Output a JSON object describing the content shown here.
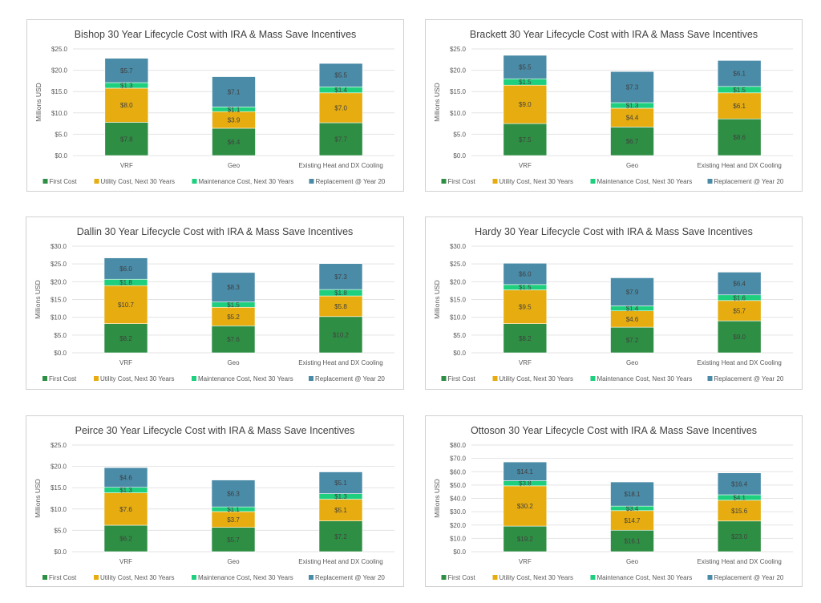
{
  "colors": {
    "first_cost": "#2e8f44",
    "utility": "#e6ac10",
    "maintenance": "#1ecf7e",
    "replacement": "#4a8ba8"
  },
  "chart_data": [
    {
      "type": "bar",
      "stacked": true,
      "title": "Bishop 30 Year Lifecycle Cost with IRA & Mass Save Incentives",
      "xlabel": "",
      "ylabel": "Millions USD",
      "ylim": [
        0,
        25
      ],
      "yticks": [
        "$0.0",
        "$5.0",
        "$10.0",
        "$15.0",
        "$20.0",
        "$25.0"
      ],
      "grid": true,
      "legend": "bottom",
      "categories": [
        "VRF",
        "Geo",
        "Existing Heat and DX Cooling"
      ],
      "series": [
        {
          "name": "First Cost",
          "key": "first_cost",
          "values": [
            7.8,
            6.4,
            7.7
          ],
          "labels": [
            "$7.8",
            "$6.4",
            "$7.7"
          ]
        },
        {
          "name": "Utility Cost, Next 30 Years",
          "key": "utility",
          "values": [
            8.0,
            3.9,
            7.0
          ],
          "labels": [
            "$8.0",
            "$3.9",
            "$7.0"
          ]
        },
        {
          "name": "Maintenance Cost, Next 30 Years",
          "key": "maintenance",
          "values": [
            1.3,
            1.1,
            1.4
          ],
          "labels": [
            "$1.3",
            "$1.1",
            "$1.4"
          ]
        },
        {
          "name": "Replacement @ Year 20",
          "key": "replacement",
          "values": [
            5.7,
            7.1,
            5.5
          ],
          "labels": [
            "$5.7",
            "$7.1",
            "$5.5"
          ]
        }
      ]
    },
    {
      "type": "bar",
      "stacked": true,
      "title": "Brackett 30 Year Lifecycle Cost with IRA & Mass Save Incentives",
      "xlabel": "",
      "ylabel": "Millions USD",
      "ylim": [
        0,
        25
      ],
      "yticks": [
        "$0.0",
        "$5.0",
        "$10.0",
        "$15.0",
        "$20.0",
        "$25.0"
      ],
      "grid": true,
      "legend": "bottom",
      "categories": [
        "VRF",
        "Geo",
        "Existing Heat and DX Cooling"
      ],
      "series": [
        {
          "name": "First Cost",
          "key": "first_cost",
          "values": [
            7.5,
            6.7,
            8.6
          ],
          "labels": [
            "$7.5",
            "$6.7",
            "$8.6"
          ]
        },
        {
          "name": "Utility Cost, Next 30 Years",
          "key": "utility",
          "values": [
            9.0,
            4.4,
            6.1
          ],
          "labels": [
            "$9.0",
            "$4.4",
            "$6.1"
          ]
        },
        {
          "name": "Maintenance Cost, Next 30 Years",
          "key": "maintenance",
          "values": [
            1.5,
            1.3,
            1.5
          ],
          "labels": [
            "$1.5",
            "$1.3",
            "$1.5"
          ]
        },
        {
          "name": "Replacement @ Year 20",
          "key": "replacement",
          "values": [
            5.5,
            7.3,
            6.1
          ],
          "labels": [
            "$5.5",
            "$7.3",
            "$6.1"
          ]
        }
      ]
    },
    {
      "type": "bar",
      "stacked": true,
      "title": "Dallin 30 Year Lifecycle Cost with IRA & Mass Save Incentives",
      "xlabel": "",
      "ylabel": "Millions USD",
      "ylim": [
        0,
        30
      ],
      "yticks": [
        "$0.0",
        "$5.0",
        "$10.0",
        "$15.0",
        "$20.0",
        "$25.0",
        "$30.0"
      ],
      "grid": true,
      "legend": "bottom",
      "categories": [
        "VRF",
        "Geo",
        "Existing Heat and DX Cooling"
      ],
      "series": [
        {
          "name": "First Cost",
          "key": "first_cost",
          "values": [
            8.2,
            7.6,
            10.2
          ],
          "labels": [
            "$8.2",
            "$7.6",
            "$10.2"
          ]
        },
        {
          "name": "Utility Cost, Next 30 Years",
          "key": "utility",
          "values": [
            10.7,
            5.2,
            5.8
          ],
          "labels": [
            "$10.7",
            "$5.2",
            "$5.8"
          ]
        },
        {
          "name": "Maintenance Cost, Next 30 Years",
          "key": "maintenance",
          "values": [
            1.8,
            1.5,
            1.8
          ],
          "labels": [
            "$1.8",
            "$1.5",
            "$1.8"
          ]
        },
        {
          "name": "Replacement @ Year 20",
          "key": "replacement",
          "values": [
            6.0,
            8.3,
            7.3
          ],
          "labels": [
            "$6.0",
            "$8.3",
            "$7.3"
          ]
        }
      ]
    },
    {
      "type": "bar",
      "stacked": true,
      "title": "Hardy 30 Year Lifecycle Cost with IRA & Mass Save Incentives",
      "xlabel": "",
      "ylabel": "Millions USD",
      "ylim": [
        0,
        30
      ],
      "yticks": [
        "$0.0",
        "$5.0",
        "$10.0",
        "$15.0",
        "$20.0",
        "$25.0",
        "$30.0"
      ],
      "grid": true,
      "legend": "bottom",
      "categories": [
        "VRF",
        "Geo",
        "Existing Heat and DX Cooling"
      ],
      "series": [
        {
          "name": "First Cost",
          "key": "first_cost",
          "values": [
            8.2,
            7.2,
            9.0
          ],
          "labels": [
            "$8.2",
            "$7.2",
            "$9.0"
          ]
        },
        {
          "name": "Utility Cost, Next 30 Years",
          "key": "utility",
          "values": [
            9.5,
            4.6,
            5.7
          ],
          "labels": [
            "$9.5",
            "$4.6",
            "$5.7"
          ]
        },
        {
          "name": "Maintenance Cost, Next 30 Years",
          "key": "maintenance",
          "values": [
            1.5,
            1.4,
            1.6
          ],
          "labels": [
            "$1.5",
            "$1.4",
            "$1.6"
          ]
        },
        {
          "name": "Replacement @ Year 20",
          "key": "replacement",
          "values": [
            6.0,
            7.9,
            6.4
          ],
          "labels": [
            "$6.0",
            "$7.9",
            "$6.4"
          ]
        }
      ]
    },
    {
      "type": "bar",
      "stacked": true,
      "title": "Peirce 30 Year Lifecycle Cost with IRA & Mass Save Incentives",
      "xlabel": "",
      "ylabel": "Millions USD",
      "ylim": [
        0,
        25
      ],
      "yticks": [
        "$0.0",
        "$5.0",
        "$10.0",
        "$15.0",
        "$20.0",
        "$25.0"
      ],
      "grid": true,
      "legend": "bottom",
      "categories": [
        "VRF",
        "Geo",
        "Existing Heat and DX Cooling"
      ],
      "series": [
        {
          "name": "First Cost",
          "key": "first_cost",
          "values": [
            6.2,
            5.7,
            7.2
          ],
          "labels": [
            "$6.2",
            "$5.7",
            "$7.2"
          ]
        },
        {
          "name": "Utility Cost, Next 30 Years",
          "key": "utility",
          "values": [
            7.6,
            3.7,
            5.1
          ],
          "labels": [
            "$7.6",
            "$3.7",
            "$5.1"
          ]
        },
        {
          "name": "Maintenance Cost, Next 30 Years",
          "key": "maintenance",
          "values": [
            1.3,
            1.1,
            1.3
          ],
          "labels": [
            "$1.3",
            "$1.1",
            "$1.3"
          ]
        },
        {
          "name": "Replacement @ Year 20",
          "key": "replacement",
          "values": [
            4.6,
            6.3,
            5.1
          ],
          "labels": [
            "$4.6",
            "$6.3",
            "$5.1"
          ]
        }
      ]
    },
    {
      "type": "bar",
      "stacked": true,
      "title": "Ottoson 30 Year Lifecycle Cost with IRA & Mass Save Incentives",
      "xlabel": "",
      "ylabel": "Millions USD",
      "ylim": [
        0,
        80
      ],
      "yticks": [
        "$0.0",
        "$10.0",
        "$20.0",
        "$30.0",
        "$40.0",
        "$50.0",
        "$60.0",
        "$70.0",
        "$80.0"
      ],
      "grid": true,
      "legend": "bottom",
      "categories": [
        "VRF",
        "Geo",
        "Existing Heat and DX Cooling"
      ],
      "series": [
        {
          "name": "First Cost",
          "key": "first_cost",
          "values": [
            19.2,
            16.1,
            23.0
          ],
          "labels": [
            "$19.2",
            "$16.1",
            "$23.0"
          ]
        },
        {
          "name": "Utility Cost, Next 30 Years",
          "key": "utility",
          "values": [
            30.2,
            14.7,
            15.6
          ],
          "labels": [
            "$30.2",
            "$14.7",
            "$15.6"
          ]
        },
        {
          "name": "Maintenance Cost, Next 30 Years",
          "key": "maintenance",
          "values": [
            3.8,
            3.4,
            4.1
          ],
          "labels": [
            "$3.8",
            "$3.4",
            "$4.1"
          ]
        },
        {
          "name": "Replacement @ Year 20",
          "key": "replacement",
          "values": [
            14.1,
            18.1,
            16.4
          ],
          "labels": [
            "$14.1",
            "$18.1",
            "$16.4"
          ]
        }
      ]
    }
  ]
}
